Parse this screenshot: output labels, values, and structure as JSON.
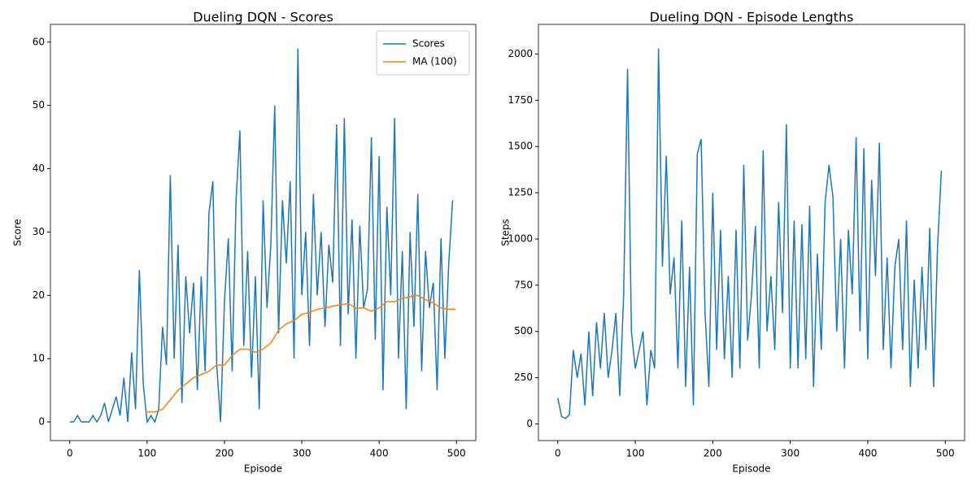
{
  "chart_data": [
    {
      "type": "line",
      "title": "Dueling DQN - Scores",
      "x_label": "Episode",
      "y_label": "Score",
      "xlim": [
        -25,
        525
      ],
      "ylim": [
        -2.95,
        62.8
      ],
      "xticks": [
        0,
        100,
        200,
        300,
        400,
        500
      ],
      "yticks": [
        0,
        10,
        20,
        30,
        40,
        50,
        60
      ],
      "legend": "upper right",
      "series": [
        {
          "name": "Scores",
          "color": "#1f77b4",
          "x": [
            0,
            5,
            10,
            15,
            20,
            25,
            30,
            35,
            40,
            45,
            50,
            55,
            60,
            65,
            70,
            75,
            80,
            85,
            90,
            95,
            100,
            105,
            110,
            115,
            120,
            125,
            130,
            135,
            140,
            145,
            150,
            155,
            160,
            165,
            170,
            175,
            180,
            185,
            190,
            195,
            200,
            205,
            210,
            215,
            220,
            225,
            230,
            235,
            240,
            245,
            250,
            255,
            260,
            265,
            270,
            275,
            280,
            285,
            290,
            295,
            300,
            305,
            310,
            315,
            320,
            325,
            330,
            335,
            340,
            345,
            350,
            355,
            360,
            365,
            370,
            375,
            380,
            385,
            390,
            395,
            400,
            405,
            410,
            415,
            420,
            425,
            430,
            435,
            440,
            445,
            450,
            455,
            460,
            465,
            470,
            475,
            480,
            485,
            490,
            495
          ],
          "values": [
            0,
            0,
            1,
            0,
            0,
            0,
            1,
            0,
            1,
            3,
            0,
            2,
            4,
            1,
            7,
            0,
            11,
            2,
            24,
            6,
            0,
            1,
            0,
            2,
            15,
            9,
            39,
            10,
            28,
            3,
            23,
            14,
            22,
            5,
            23,
            8,
            33,
            38,
            9,
            0,
            19,
            29,
            8,
            35,
            46,
            12,
            27,
            7,
            23,
            2,
            35,
            18,
            28,
            50,
            14,
            35,
            25,
            38,
            10,
            59,
            20,
            30,
            12,
            36,
            20,
            30,
            15,
            28,
            22,
            47,
            12,
            48,
            17,
            32,
            10,
            31,
            18,
            21,
            45,
            13,
            42,
            5,
            34,
            20,
            48,
            10,
            27,
            2,
            30,
            15,
            36,
            8,
            27,
            18,
            22,
            5,
            29,
            10,
            25,
            35
          ]
        },
        {
          "name": "MA (100)",
          "color": "#ff7f0e",
          "x": [
            100,
            110,
            120,
            130,
            140,
            150,
            160,
            170,
            180,
            190,
            200,
            210,
            220,
            230,
            240,
            250,
            260,
            270,
            280,
            290,
            300,
            310,
            320,
            330,
            340,
            350,
            360,
            370,
            380,
            390,
            400,
            410,
            420,
            430,
            440,
            450,
            460,
            470,
            480,
            490,
            499
          ],
          "values": [
            1.6,
            1.6,
            2,
            3.5,
            5,
            6,
            7,
            7.5,
            8,
            9,
            9,
            10.5,
            11.5,
            11.5,
            11,
            11.5,
            12.5,
            14.5,
            15.5,
            16,
            17,
            17.3,
            17.8,
            18,
            18.3,
            18.5,
            18.7,
            18,
            18,
            17.5,
            18,
            19,
            19,
            19.5,
            19.8,
            20,
            19.3,
            18.8,
            18,
            17.8,
            17.8
          ]
        }
      ]
    },
    {
      "type": "line",
      "title": "Dueling DQN - Episode Lengths",
      "x_label": "Episode",
      "y_label": "Steps",
      "xlim": [
        -25,
        525
      ],
      "ylim": [
        -90,
        2160
      ],
      "xticks": [
        0,
        100,
        200,
        300,
        400,
        500
      ],
      "yticks": [
        0,
        250,
        500,
        750,
        1000,
        1250,
        1500,
        1750,
        2000
      ],
      "series": [
        {
          "color": "#1f77b4",
          "x": [
            0,
            5,
            10,
            15,
            20,
            25,
            30,
            35,
            40,
            45,
            50,
            55,
            60,
            65,
            70,
            75,
            80,
            85,
            90,
            95,
            100,
            105,
            110,
            115,
            120,
            125,
            130,
            135,
            140,
            145,
            150,
            155,
            160,
            165,
            170,
            175,
            180,
            185,
            190,
            195,
            200,
            205,
            210,
            215,
            220,
            225,
            230,
            235,
            240,
            245,
            250,
            255,
            260,
            265,
            270,
            275,
            280,
            285,
            290,
            295,
            300,
            305,
            310,
            315,
            320,
            325,
            330,
            335,
            340,
            345,
            350,
            355,
            360,
            365,
            370,
            375,
            380,
            385,
            390,
            395,
            400,
            405,
            410,
            415,
            420,
            425,
            430,
            435,
            440,
            445,
            450,
            455,
            460,
            465,
            470,
            475,
            480,
            485,
            490,
            495
          ],
          "values": [
            140,
            40,
            30,
            50,
            400,
            250,
            380,
            100,
            500,
            150,
            550,
            300,
            600,
            250,
            400,
            600,
            150,
            700,
            1920,
            500,
            300,
            400,
            500,
            100,
            400,
            300,
            2030,
            850,
            1450,
            700,
            900,
            300,
            1100,
            200,
            850,
            100,
            1460,
            1540,
            600,
            200,
            1250,
            400,
            1050,
            350,
            800,
            250,
            1050,
            300,
            1400,
            450,
            700,
            1070,
            300,
            1480,
            500,
            800,
            400,
            1200,
            600,
            1620,
            300,
            1100,
            300,
            1080,
            350,
            1180,
            200,
            920,
            400,
            1200,
            1400,
            1230,
            500,
            1000,
            300,
            1050,
            700,
            1550,
            500,
            1490,
            350,
            1320,
            800,
            1520,
            400,
            900,
            300,
            850,
            1000,
            400,
            1100,
            200,
            780,
            300,
            850,
            400,
            1060,
            200,
            950,
            1370
          ]
        }
      ]
    }
  ]
}
